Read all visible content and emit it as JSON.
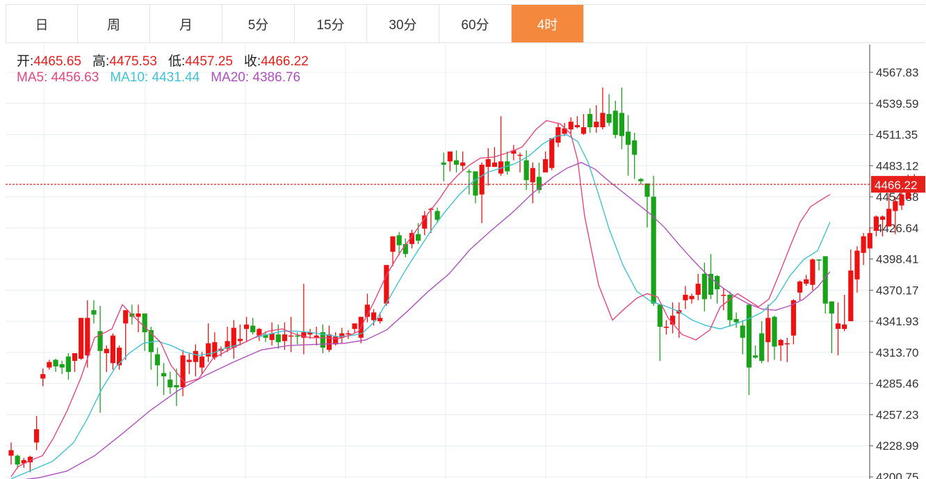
{
  "tabs": [
    {
      "label": "日",
      "active": false
    },
    {
      "label": "周",
      "active": false
    },
    {
      "label": "月",
      "active": false
    },
    {
      "label": "5分",
      "active": false
    },
    {
      "label": "15分",
      "active": false
    },
    {
      "label": "30分",
      "active": false
    },
    {
      "label": "60分",
      "active": false
    },
    {
      "label": "4时",
      "active": true
    }
  ],
  "ohlc_info": {
    "open_label": "开:",
    "open": "4465.65",
    "high_label": "高:",
    "high": "4475.53",
    "low_label": "低:",
    "low": "4457.25",
    "close_label": "收:",
    "close": "4466.22"
  },
  "ma_info": {
    "ma5_label": "MA5:",
    "ma5": "4456.63",
    "ma10_label": "MA10:",
    "ma10": "4431.44",
    "ma20_label": "MA20:",
    "ma20": "4386.76"
  },
  "colors": {
    "up": "#ee1111",
    "down": "#1aa31a",
    "ma5": "#e8457a",
    "ma10": "#3cc4d6",
    "ma20": "#b04fc0",
    "grid": "#e6ecf2",
    "axis_text": "#333333",
    "price_line": "#e8201c",
    "active_tab": "#f4883c",
    "value_red": "#e8201c"
  },
  "chart_data": {
    "type": "candlestick",
    "y_ticks": [
      "4567.83",
      "4539.59",
      "4511.35",
      "4483.12",
      "4454.88",
      "4426.64",
      "4398.41",
      "4370.17",
      "4341.93",
      "4313.70",
      "4285.46",
      "4257.23",
      "4228.99",
      "4200.75"
    ],
    "ylim": [
      4200.75,
      4567.83
    ],
    "last_price": "4466.22",
    "candles": [
      [
        4220,
        4225,
        4232,
        4212
      ],
      [
        4220,
        4212,
        4221,
        4208
      ],
      [
        4213,
        4216,
        4218,
        4209
      ],
      [
        4214,
        4219,
        4220,
        4205
      ],
      [
        4232,
        4244,
        4256,
        4225
      ],
      [
        4290,
        4294,
        4299,
        4283
      ],
      [
        4300,
        4305,
        4307,
        4298
      ],
      [
        4307,
        4301,
        4308,
        4296
      ],
      [
        4303,
        4300,
        4306,
        4294
      ],
      [
        4310,
        4296,
        4313,
        4289
      ],
      [
        4306,
        4313,
        4312,
        4296
      ],
      [
        4308,
        4345,
        4345,
        4307
      ],
      [
        4311,
        4345,
        4361,
        4300
      ],
      [
        4352,
        4348,
        4361,
        4340
      ],
      [
        4333,
        4315,
        4356,
        4259
      ],
      [
        4313,
        4317,
        4320,
        4296
      ],
      [
        4304,
        4329,
        4331,
        4298
      ],
      [
        4302,
        4318,
        4320,
        4298
      ],
      [
        4340,
        4352,
        4352,
        4307
      ],
      [
        4349,
        4346,
        4357,
        4339
      ],
      [
        4346,
        4349,
        4357,
        4332
      ],
      [
        4349,
        4332,
        4342,
        4315
      ],
      [
        4334,
        4314,
        4337,
        4298
      ],
      [
        4312,
        4302,
        4318,
        4283
      ],
      [
        4295,
        4292,
        4304,
        4275
      ],
      [
        4289,
        4282,
        4296,
        4276
      ],
      [
        4284,
        4282,
        4299,
        4265
      ],
      [
        4282,
        4311,
        4316,
        4274
      ],
      [
        4305,
        4307,
        4313,
        4294
      ],
      [
        4305,
        4315,
        4321,
        4292
      ],
      [
        4300,
        4310,
        4314,
        4294
      ],
      [
        4310,
        4322,
        4340,
        4305
      ],
      [
        4309,
        4323,
        4332,
        4307
      ],
      [
        4315,
        4317,
        4319,
        4310
      ],
      [
        4317,
        4324,
        4337,
        4314
      ],
      [
        4318,
        4336,
        4343,
        4308
      ],
      [
        4324,
        4326,
        4339,
        4320
      ],
      [
        4335,
        4339,
        4346,
        4323
      ],
      [
        4338,
        4332,
        4345,
        4330
      ],
      [
        4329,
        4335,
        4336,
        4324
      ],
      [
        4330,
        4327,
        4333,
        4323
      ],
      [
        4325,
        4331,
        4341,
        4320
      ],
      [
        4330,
        4323,
        4339,
        4317
      ],
      [
        4324,
        4330,
        4341,
        4316
      ],
      [
        4329,
        4329,
        4346,
        4314
      ],
      [
        4329,
        4328,
        4332,
        4321
      ],
      [
        4327,
        4332,
        4376,
        4312
      ],
      [
        4330,
        4332,
        4335,
        4326
      ],
      [
        4327,
        4329,
        4337,
        4320
      ],
      [
        4332,
        4318,
        4339,
        4313
      ],
      [
        4316,
        4330,
        4338,
        4314
      ],
      [
        4321,
        4328,
        4332,
        4320
      ],
      [
        4327,
        4331,
        4336,
        4322
      ],
      [
        4331,
        4331,
        4334,
        4326
      ],
      [
        4335,
        4340,
        4340,
        4331
      ],
      [
        4327,
        4346,
        4346,
        4322
      ],
      [
        4346,
        4357,
        4367,
        4341
      ],
      [
        4343,
        4350,
        4353,
        4338
      ],
      [
        4342,
        4345,
        4350,
        4340
      ],
      [
        4358,
        4393,
        4393,
        4356
      ],
      [
        4405,
        4419,
        4419,
        4392
      ],
      [
        4420,
        4411,
        4423,
        4402
      ],
      [
        4412,
        4403,
        4417,
        4400
      ],
      [
        4412,
        4422,
        4425,
        4408
      ],
      [
        4421,
        4415,
        4431,
        4412
      ],
      [
        4426,
        4438,
        4442,
        4420
      ],
      [
        4443,
        4444,
        4445,
        4422
      ],
      [
        4442,
        4434,
        4445,
        4431
      ],
      [
        4486,
        4484,
        4495,
        4469
      ],
      [
        4487,
        4496,
        4496,
        4478
      ],
      [
        4488,
        4484,
        4497,
        4477
      ],
      [
        4483,
        4486,
        4496,
        4479
      ],
      [
        4478,
        4477,
        4480,
        4457
      ],
      [
        4478,
        4456,
        4478,
        4449
      ],
      [
        4457,
        4484,
        4486,
        4431
      ],
      [
        4482,
        4489,
        4499,
        4465
      ],
      [
        4482,
        4486,
        4500,
        4482
      ],
      [
        4476,
        4487,
        4528,
        4474
      ],
      [
        4487,
        4478,
        4496,
        4475
      ],
      [
        4494,
        4497,
        4502,
        4488
      ],
      [
        4492,
        4493,
        4495,
        4477
      ],
      [
        4488,
        4470,
        4497,
        4461
      ],
      [
        4468,
        4481,
        4486,
        4449
      ],
      [
        4473,
        4461,
        4486,
        4458
      ],
      [
        4477,
        4489,
        4496,
        4477
      ],
      [
        4481,
        4508,
        4508,
        4479
      ],
      [
        4504,
        4518,
        4522,
        4500
      ],
      [
        4512,
        4517,
        4522,
        4510
      ],
      [
        4516,
        4523,
        4527,
        4509
      ],
      [
        4518,
        4520,
        4528,
        4517
      ],
      [
        4512,
        4518,
        4530,
        4511
      ],
      [
        4530,
        4518,
        4535,
        4513
      ],
      [
        4518,
        4523,
        4538,
        4513
      ],
      [
        4518,
        4531,
        4554,
        4516
      ],
      [
        4530,
        4522,
        4548,
        4519
      ],
      [
        4533,
        4511,
        4542,
        4508
      ],
      [
        4531,
        4510,
        4554,
        4498
      ],
      [
        4514,
        4502,
        4529,
        4474
      ],
      [
        4506,
        4493,
        4513,
        4471
      ],
      [
        4471,
        4469,
        4472,
        4466
      ],
      [
        4467,
        4455,
        4466,
        4427
      ],
      [
        4455,
        4358,
        4474,
        4356
      ],
      [
        4357,
        4337,
        4357,
        4306
      ],
      [
        4336,
        4337,
        4343,
        4330
      ],
      [
        4339,
        4347,
        4359,
        4331
      ],
      [
        4349,
        4352,
        4359,
        4327
      ],
      [
        4361,
        4366,
        4374,
        4353
      ],
      [
        4362,
        4365,
        4367,
        4358
      ],
      [
        4366,
        4376,
        4385,
        4361
      ],
      [
        4385,
        4362,
        4395,
        4351
      ],
      [
        4385,
        4366,
        4403,
        4362
      ],
      [
        4383,
        4371,
        4384,
        4358
      ],
      [
        4366,
        4366,
        4372,
        4352
      ],
      [
        4366,
        4343,
        4369,
        4337
      ],
      [
        4344,
        4341,
        4350,
        4336
      ],
      [
        4338,
        4327,
        4343,
        4312
      ],
      [
        4357,
        4300,
        4358,
        4275
      ],
      [
        4311,
        4309,
        4320,
        4308
      ],
      [
        4331,
        4306,
        4342,
        4304
      ],
      [
        4323,
        4345,
        4357,
        4305
      ],
      [
        4346,
        4319,
        4347,
        4307
      ],
      [
        4320,
        4325,
        4326,
        4306
      ],
      [
        4321,
        4322,
        4327,
        4305
      ],
      [
        4329,
        4361,
        4362,
        4321
      ],
      [
        4368,
        4378,
        4379,
        4361
      ],
      [
        4376,
        4380,
        4384,
        4374
      ],
      [
        4375,
        4398,
        4399,
        4370
      ],
      [
        4398,
        4397,
        4398,
        4388
      ],
      [
        4401,
        4358,
        4401,
        4349
      ],
      [
        4360,
        4349,
        4352,
        4313
      ],
      [
        4335,
        4340,
        4359,
        4311
      ],
      [
        4335,
        4339,
        4366,
        4333
      ],
      [
        4342,
        4388,
        4407,
        4342
      ],
      [
        4380,
        4406,
        4410,
        4368
      ],
      [
        4404,
        4419,
        4422,
        4393
      ],
      [
        4408,
        4422,
        4427,
        4414
      ],
      [
        4424,
        4437,
        4438,
        4419
      ],
      [
        4434,
        4437,
        4438,
        4419
      ],
      [
        4428,
        4444,
        4458,
        4428
      ],
      [
        4442,
        4451,
        4455,
        4421
      ],
      [
        4447,
        4457,
        4467,
        4443
      ],
      [
        4453,
        4461,
        4475,
        4457
      ],
      [
        4465.65,
        4466.22,
        4475.53,
        4457.25
      ]
    ],
    "ma5": [
      [
        0,
        4201
      ],
      [
        10,
        4210
      ],
      [
        25,
        4215
      ],
      [
        45,
        4220
      ],
      [
        60,
        4235
      ],
      [
        80,
        4260
      ],
      [
        100,
        4290
      ],
      [
        120,
        4327
      ],
      [
        145,
        4335
      ],
      [
        160,
        4357
      ],
      [
        175,
        4347
      ],
      [
        195,
        4335
      ],
      [
        215,
        4323
      ],
      [
        230,
        4302
      ],
      [
        250,
        4286
      ],
      [
        270,
        4290
      ],
      [
        290,
        4308
      ],
      [
        310,
        4315
      ],
      [
        330,
        4321
      ],
      [
        350,
        4327
      ],
      [
        370,
        4333
      ],
      [
        390,
        4335
      ],
      [
        410,
        4330
      ],
      [
        430,
        4327
      ],
      [
        450,
        4327
      ],
      [
        470,
        4326
      ],
      [
        490,
        4330
      ],
      [
        500,
        4333
      ],
      [
        520,
        4357
      ],
      [
        540,
        4384
      ],
      [
        560,
        4405
      ],
      [
        580,
        4422
      ],
      [
        600,
        4440
      ],
      [
        615,
        4452
      ],
      [
        630,
        4466
      ],
      [
        645,
        4476
      ],
      [
        660,
        4484
      ],
      [
        675,
        4490
      ],
      [
        695,
        4491
      ],
      [
        715,
        4495
      ],
      [
        735,
        4500
      ],
      [
        755,
        4516
      ],
      [
        770,
        4524
      ],
      [
        790,
        4521
      ],
      [
        805,
        4512
      ],
      [
        815,
        4488
      ],
      [
        825,
        4437
      ],
      [
        845,
        4375
      ],
      [
        865,
        4343
      ],
      [
        880,
        4352
      ],
      [
        900,
        4363
      ],
      [
        915,
        4367
      ],
      [
        930,
        4364
      ],
      [
        945,
        4345
      ],
      [
        965,
        4330
      ],
      [
        985,
        4325
      ],
      [
        1005,
        4334
      ],
      [
        1020,
        4355
      ],
      [
        1045,
        4367
      ],
      [
        1060,
        4361
      ],
      [
        1075,
        4355
      ],
      [
        1090,
        4362
      ],
      [
        1105,
        4385
      ],
      [
        1120,
        4409
      ],
      [
        1135,
        4432
      ],
      [
        1150,
        4446
      ],
      [
        1165,
        4452
      ],
      [
        1178,
        4457
      ]
    ],
    "ma10": [
      [
        0,
        4199
      ],
      [
        30,
        4207
      ],
      [
        60,
        4215
      ],
      [
        90,
        4232
      ],
      [
        110,
        4254
      ],
      [
        130,
        4280
      ],
      [
        150,
        4300
      ],
      [
        170,
        4313
      ],
      [
        190,
        4322
      ],
      [
        210,
        4324
      ],
      [
        230,
        4320
      ],
      [
        250,
        4314
      ],
      [
        270,
        4311
      ],
      [
        290,
        4313
      ],
      [
        310,
        4318
      ],
      [
        330,
        4321
      ],
      [
        350,
        4327
      ],
      [
        370,
        4330
      ],
      [
        390,
        4333
      ],
      [
        410,
        4333
      ],
      [
        430,
        4332
      ],
      [
        450,
        4330
      ],
      [
        470,
        4328
      ],
      [
        490,
        4329
      ],
      [
        505,
        4331
      ],
      [
        525,
        4343
      ],
      [
        545,
        4364
      ],
      [
        565,
        4386
      ],
      [
        585,
        4406
      ],
      [
        605,
        4425
      ],
      [
        625,
        4442
      ],
      [
        645,
        4457
      ],
      [
        665,
        4469
      ],
      [
        685,
        4477
      ],
      [
        705,
        4481
      ],
      [
        725,
        4485
      ],
      [
        745,
        4492
      ],
      [
        765,
        4503
      ],
      [
        785,
        4510
      ],
      [
        800,
        4511
      ],
      [
        815,
        4505
      ],
      [
        830,
        4486
      ],
      [
        845,
        4457
      ],
      [
        860,
        4426
      ],
      [
        880,
        4393
      ],
      [
        900,
        4369
      ],
      [
        920,
        4360
      ],
      [
        940,
        4356
      ],
      [
        960,
        4351
      ],
      [
        980,
        4343
      ],
      [
        1000,
        4338
      ],
      [
        1020,
        4335
      ],
      [
        1040,
        4339
      ],
      [
        1060,
        4344
      ],
      [
        1080,
        4350
      ],
      [
        1100,
        4362
      ],
      [
        1120,
        4383
      ],
      [
        1140,
        4398
      ],
      [
        1160,
        4406
      ],
      [
        1178,
        4432
      ]
    ],
    "ma20": [
      [
        0,
        4197
      ],
      [
        40,
        4200
      ],
      [
        80,
        4206
      ],
      [
        120,
        4220
      ],
      [
        160,
        4240
      ],
      [
        200,
        4261
      ],
      [
        240,
        4279
      ],
      [
        280,
        4293
      ],
      [
        320,
        4305
      ],
      [
        360,
        4316
      ],
      [
        400,
        4320
      ],
      [
        440,
        4321
      ],
      [
        480,
        4322
      ],
      [
        510,
        4325
      ],
      [
        540,
        4334
      ],
      [
        570,
        4351
      ],
      [
        600,
        4369
      ],
      [
        630,
        4385
      ],
      [
        660,
        4407
      ],
      [
        690,
        4424
      ],
      [
        720,
        4440
      ],
      [
        750,
        4458
      ],
      [
        780,
        4473
      ],
      [
        800,
        4481
      ],
      [
        820,
        4486
      ],
      [
        840,
        4480
      ],
      [
        860,
        4469
      ],
      [
        880,
        4459
      ],
      [
        900,
        4449
      ],
      [
        920,
        4439
      ],
      [
        940,
        4427
      ],
      [
        960,
        4412
      ],
      [
        980,
        4398
      ],
      [
        1000,
        4385
      ],
      [
        1020,
        4374
      ],
      [
        1040,
        4365
      ],
      [
        1060,
        4358
      ],
      [
        1080,
        4353
      ],
      [
        1100,
        4352
      ],
      [
        1120,
        4356
      ],
      [
        1140,
        4362
      ],
      [
        1160,
        4373
      ],
      [
        1178,
        4387
      ]
    ]
  }
}
